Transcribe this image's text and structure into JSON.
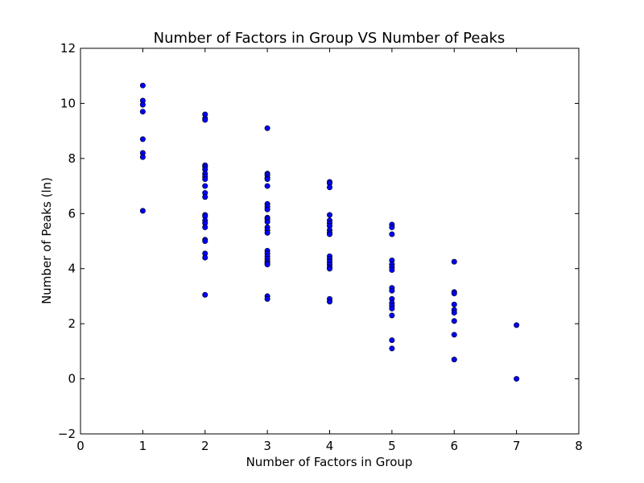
{
  "chart_data": {
    "type": "scatter",
    "title": "Number of Factors in Group VS Number of Peaks",
    "xlabel": "Number of Factors in Group",
    "ylabel": "Number of Peaks (ln)",
    "xlim": [
      0,
      8
    ],
    "ylim": [
      -2,
      12
    ],
    "xticks": [
      "0",
      "1",
      "2",
      "3",
      "4",
      "5",
      "6",
      "7",
      "8"
    ],
    "yticks": [
      "−2",
      "0",
      "2",
      "4",
      "6",
      "8",
      "10",
      "12"
    ],
    "grid": false,
    "marker_color": "#0000ff",
    "points": [
      {
        "x": 1,
        "y": 10.65
      },
      {
        "x": 1,
        "y": 10.1
      },
      {
        "x": 1,
        "y": 9.95
      },
      {
        "x": 1,
        "y": 9.7
      },
      {
        "x": 1,
        "y": 8.7
      },
      {
        "x": 1,
        "y": 8.2
      },
      {
        "x": 1,
        "y": 8.05
      },
      {
        "x": 1,
        "y": 6.1
      },
      {
        "x": 2,
        "y": 9.6
      },
      {
        "x": 2,
        "y": 9.45
      },
      {
        "x": 2,
        "y": 9.4
      },
      {
        "x": 2,
        "y": 7.75
      },
      {
        "x": 2,
        "y": 7.7
      },
      {
        "x": 2,
        "y": 7.6
      },
      {
        "x": 2,
        "y": 7.45
      },
      {
        "x": 2,
        "y": 7.35
      },
      {
        "x": 2,
        "y": 7.25
      },
      {
        "x": 2,
        "y": 7.0
      },
      {
        "x": 2,
        "y": 6.75
      },
      {
        "x": 2,
        "y": 6.6
      },
      {
        "x": 2,
        "y": 5.95
      },
      {
        "x": 2,
        "y": 5.9
      },
      {
        "x": 2,
        "y": 5.75
      },
      {
        "x": 2,
        "y": 5.65
      },
      {
        "x": 2,
        "y": 5.5
      },
      {
        "x": 2,
        "y": 5.05
      },
      {
        "x": 2,
        "y": 5.0
      },
      {
        "x": 2,
        "y": 4.55
      },
      {
        "x": 2,
        "y": 4.4
      },
      {
        "x": 2,
        "y": 3.05
      },
      {
        "x": 3,
        "y": 9.1
      },
      {
        "x": 3,
        "y": 7.45
      },
      {
        "x": 3,
        "y": 7.4
      },
      {
        "x": 3,
        "y": 7.3
      },
      {
        "x": 3,
        "y": 7.25
      },
      {
        "x": 3,
        "y": 7.0
      },
      {
        "x": 3,
        "y": 6.35
      },
      {
        "x": 3,
        "y": 6.25
      },
      {
        "x": 3,
        "y": 6.15
      },
      {
        "x": 3,
        "y": 5.85
      },
      {
        "x": 3,
        "y": 5.8
      },
      {
        "x": 3,
        "y": 5.7
      },
      {
        "x": 3,
        "y": 5.5
      },
      {
        "x": 3,
        "y": 5.4
      },
      {
        "x": 3,
        "y": 5.3
      },
      {
        "x": 3,
        "y": 4.65
      },
      {
        "x": 3,
        "y": 4.55
      },
      {
        "x": 3,
        "y": 4.45
      },
      {
        "x": 3,
        "y": 4.35
      },
      {
        "x": 3,
        "y": 4.25
      },
      {
        "x": 3,
        "y": 4.2
      },
      {
        "x": 3,
        "y": 4.15
      },
      {
        "x": 3,
        "y": 3.0
      },
      {
        "x": 3,
        "y": 2.9
      },
      {
        "x": 4,
        "y": 7.15
      },
      {
        "x": 4,
        "y": 7.1
      },
      {
        "x": 4,
        "y": 6.95
      },
      {
        "x": 4,
        "y": 5.95
      },
      {
        "x": 4,
        "y": 5.75
      },
      {
        "x": 4,
        "y": 5.65
      },
      {
        "x": 4,
        "y": 5.55
      },
      {
        "x": 4,
        "y": 5.4
      },
      {
        "x": 4,
        "y": 5.3
      },
      {
        "x": 4,
        "y": 5.25
      },
      {
        "x": 4,
        "y": 4.45
      },
      {
        "x": 4,
        "y": 4.35
      },
      {
        "x": 4,
        "y": 4.25
      },
      {
        "x": 4,
        "y": 4.15
      },
      {
        "x": 4,
        "y": 4.05
      },
      {
        "x": 4,
        "y": 4.0
      },
      {
        "x": 4,
        "y": 2.9
      },
      {
        "x": 4,
        "y": 2.8
      },
      {
        "x": 5,
        "y": 5.6
      },
      {
        "x": 5,
        "y": 5.5
      },
      {
        "x": 5,
        "y": 5.25
      },
      {
        "x": 5,
        "y": 4.3
      },
      {
        "x": 5,
        "y": 4.15
      },
      {
        "x": 5,
        "y": 4.05
      },
      {
        "x": 5,
        "y": 3.95
      },
      {
        "x": 5,
        "y": 3.3
      },
      {
        "x": 5,
        "y": 3.2
      },
      {
        "x": 5,
        "y": 2.9
      },
      {
        "x": 5,
        "y": 2.75
      },
      {
        "x": 5,
        "y": 2.65
      },
      {
        "x": 5,
        "y": 2.55
      },
      {
        "x": 5,
        "y": 2.3
      },
      {
        "x": 5,
        "y": 1.4
      },
      {
        "x": 5,
        "y": 1.1
      },
      {
        "x": 6,
        "y": 4.25
      },
      {
        "x": 6,
        "y": 3.15
      },
      {
        "x": 6,
        "y": 3.1
      },
      {
        "x": 6,
        "y": 2.7
      },
      {
        "x": 6,
        "y": 2.5
      },
      {
        "x": 6,
        "y": 2.4
      },
      {
        "x": 6,
        "y": 2.1
      },
      {
        "x": 6,
        "y": 1.6
      },
      {
        "x": 6,
        "y": 0.7
      },
      {
        "x": 7,
        "y": 1.95
      },
      {
        "x": 7,
        "y": 0.0
      }
    ]
  }
}
